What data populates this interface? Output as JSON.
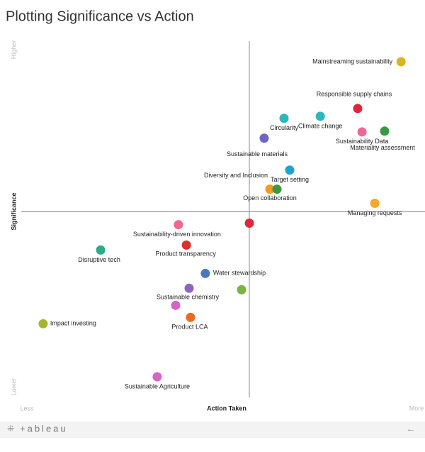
{
  "chart_data": {
    "type": "scatter",
    "title": "Plotting Significance vs Action",
    "x_label": "Action Taken",
    "x_low_label": "Less",
    "x_high_label": "More",
    "y_label": "Significance",
    "y_low_label": "Lower",
    "y_high_label": "Higher",
    "xlim": [
      -100,
      77
    ],
    "ylim": [
      -100,
      92
    ],
    "x_reference": 0,
    "y_reference": 0,
    "labels": [
      "Mainstreaming sustainability",
      "Responsible supply chains",
      "Circularity",
      "Climate change",
      "Sustainability Data",
      "Materiality assessment",
      "Sustainable materials",
      "Target setting",
      "Diversity and Inclusion",
      "Open collaboration",
      "Managing requests",
      "Sustainability-driven innovation",
      null,
      "Disruptive tech",
      "Product transparency",
      "Water stewardship",
      "Sustainable chemistry",
      null,
      null,
      "Product LCA",
      "Impact investing",
      "Sustainable Agriculture"
    ],
    "x": [
      66.5,
      47.5,
      15.2,
      31.1,
      49.4,
      59.3,
      6.5,
      17.7,
      9.0,
      12.1,
      55.0,
      -31.1,
      0,
      -65.2,
      -27.6,
      -19.3,
      -26.4,
      -3.4,
      -32.3,
      -25.8,
      -90.4,
      -40.4
    ],
    "y": [
      80.9,
      55.7,
      50.4,
      51.5,
      43.1,
      43.5,
      39.7,
      22.5,
      12.2,
      12.2,
      4.6,
      -6.9,
      -6.1,
      -20.6,
      -17.9,
      -33.2,
      -41.2,
      -42.0,
      -50.4,
      -56.9,
      -60.3,
      -88.9
    ],
    "colors": [
      "#d9b51f",
      "#e0263a",
      "#2cb8bf",
      "#2cb8bf",
      "#f0688f",
      "#3a9a43",
      "#6e67c1",
      "#1ba3d2",
      "#f39a1f",
      "#3a9a43",
      "#f3a92a",
      "#f0688f",
      "#e0263a",
      "#2aab8a",
      "#d9322a",
      "#4a78bd",
      "#9163c0",
      "#7ab441",
      "#d465c4",
      "#ef6a1e",
      "#a6b62b",
      "#d465c4"
    ],
    "footer_logo": "+ableau"
  }
}
